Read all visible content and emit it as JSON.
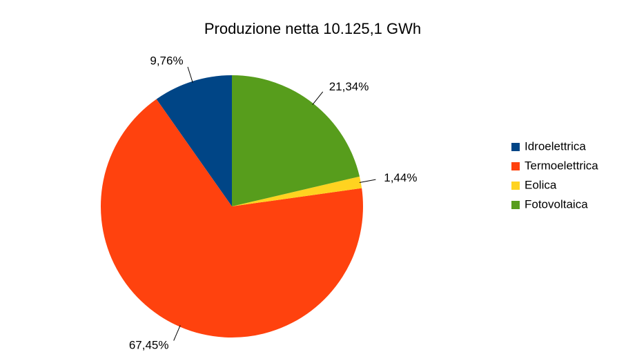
{
  "chart_data": {
    "type": "pie",
    "title": "Produzione netta 10.125,1 GWh",
    "categories": [
      "Idroelettrica",
      "Termoelettrica",
      "Eolica",
      "Fotovoltaica"
    ],
    "values": [
      9.76,
      67.45,
      1.44,
      21.34
    ],
    "value_labels": [
      "9,76%",
      "67,45%",
      "1,44%",
      "21,34%"
    ],
    "colors": [
      "#004586",
      "#ff420e",
      "#ffd320",
      "#579d1c"
    ],
    "legend": "right"
  }
}
